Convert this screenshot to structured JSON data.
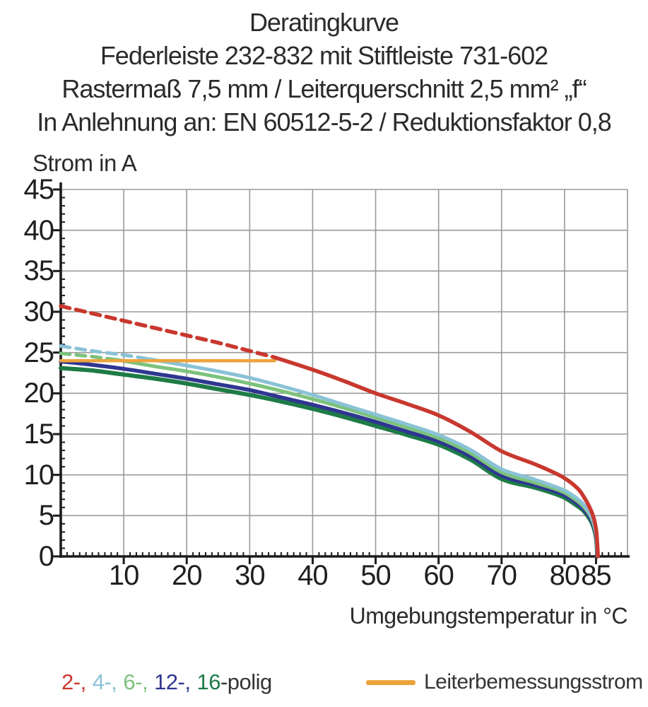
{
  "header": {
    "lines": [
      "Deratingkurve",
      "Federleiste 232-832 mit Stiftleiste 731-602",
      "Rastermaß 7,5 mm / Leiterquerschnitt 2,5 mm² „f“",
      "In Anlehnung an: EN 60512-5-2 / Reduktionsfaktor 0,8"
    ]
  },
  "chart_data": {
    "type": "line",
    "ylabel": "Strom in A",
    "xlabel": "Umgebungstemperatur in °C",
    "xlim": [
      0,
      90
    ],
    "ylim": [
      0,
      45
    ],
    "x_major_ticks": [
      10,
      20,
      30,
      40,
      50,
      60,
      70,
      80,
      85
    ],
    "x_grid_lines": [
      10,
      20,
      30,
      40,
      50,
      60,
      70,
      80,
      90
    ],
    "y_major_ticks": [
      0,
      5,
      10,
      15,
      20,
      25,
      30,
      35,
      40,
      45
    ],
    "y_grid_lines": [
      5,
      10,
      15,
      20,
      25,
      30,
      35,
      40,
      45
    ],
    "x_minor_step": 1,
    "y_minor_step": 1,
    "grid_on": true,
    "grid_color": "#9a9a9a",
    "axis_color": "#1c1c1c",
    "tick_label_color": "#1f1f1f",
    "note": "Curves are dashed where current exceeds the rated conductor current of 24 A",
    "series": [
      {
        "name": "16-polig",
        "color": "#1e7b46",
        "width": 6,
        "dash_until": null,
        "points": [
          [
            0,
            23.1
          ],
          [
            5,
            22.8
          ],
          [
            10,
            22.3
          ],
          [
            15,
            21.8
          ],
          [
            20,
            21.2
          ],
          [
            25,
            20.5
          ],
          [
            30,
            19.8
          ],
          [
            35,
            19.0
          ],
          [
            40,
            18.1
          ],
          [
            45,
            17.1
          ],
          [
            50,
            16.0
          ],
          [
            55,
            14.9
          ],
          [
            60,
            13.7
          ],
          [
            65,
            11.9
          ],
          [
            70,
            9.5
          ],
          [
            75,
            8.5
          ],
          [
            78,
            7.8
          ],
          [
            80,
            7.2
          ],
          [
            82,
            6.2
          ],
          [
            83,
            5.6
          ],
          [
            84,
            4.6
          ],
          [
            84.6,
            3.6
          ],
          [
            85,
            2.3
          ],
          [
            85.15,
            0.9
          ],
          [
            85.2,
            0
          ]
        ]
      },
      {
        "name": "12-polig",
        "color": "#2f3691",
        "width": 5.5,
        "dash_until": null,
        "points": [
          [
            0,
            23.9
          ],
          [
            5,
            23.5
          ],
          [
            10,
            23.0
          ],
          [
            15,
            22.4
          ],
          [
            20,
            21.8
          ],
          [
            25,
            21.1
          ],
          [
            30,
            20.4
          ],
          [
            35,
            19.5
          ],
          [
            40,
            18.6
          ],
          [
            45,
            17.6
          ],
          [
            50,
            16.5
          ],
          [
            55,
            15.3
          ],
          [
            60,
            14.1
          ],
          [
            65,
            12.3
          ],
          [
            70,
            9.9
          ],
          [
            75,
            8.8
          ],
          [
            78,
            8.1
          ],
          [
            80,
            7.5
          ],
          [
            82,
            6.5
          ],
          [
            83,
            5.8
          ],
          [
            84,
            4.8
          ],
          [
            84.6,
            3.8
          ],
          [
            85,
            2.5
          ],
          [
            85.15,
            1.0
          ],
          [
            85.2,
            0
          ]
        ]
      },
      {
        "name": "6-polig",
        "color": "#7dc27c",
        "width": 5,
        "dash_until": 9,
        "points": [
          [
            0,
            24.9
          ],
          [
            5,
            24.5
          ],
          [
            9,
            24.1
          ],
          [
            15,
            23.3
          ],
          [
            20,
            22.7
          ],
          [
            25,
            22.0
          ],
          [
            30,
            21.2
          ],
          [
            35,
            20.3
          ],
          [
            40,
            19.3
          ],
          [
            45,
            18.2
          ],
          [
            50,
            17.0
          ],
          [
            55,
            15.8
          ],
          [
            60,
            14.5
          ],
          [
            65,
            12.7
          ],
          [
            70,
            10.3
          ],
          [
            75,
            9.1
          ],
          [
            78,
            8.4
          ],
          [
            80,
            7.8
          ],
          [
            82,
            6.8
          ],
          [
            83,
            6.1
          ],
          [
            84,
            5.1
          ],
          [
            84.6,
            4.0
          ],
          [
            85,
            2.7
          ],
          [
            85.15,
            1.2
          ],
          [
            85.25,
            0
          ]
        ]
      },
      {
        "name": "4-polig",
        "color": "#8ac2d6",
        "width": 5,
        "dash_until": 14,
        "points": [
          [
            0,
            25.8
          ],
          [
            5,
            25.2
          ],
          [
            10,
            24.7
          ],
          [
            14,
            24.2
          ],
          [
            20,
            23.4
          ],
          [
            25,
            22.7
          ],
          [
            30,
            21.9
          ],
          [
            35,
            20.9
          ],
          [
            40,
            19.8
          ],
          [
            45,
            18.6
          ],
          [
            50,
            17.4
          ],
          [
            55,
            16.2
          ],
          [
            60,
            14.9
          ],
          [
            65,
            13.1
          ],
          [
            70,
            10.7
          ],
          [
            75,
            9.5
          ],
          [
            78,
            8.7
          ],
          [
            80,
            8.1
          ],
          [
            82,
            7.1
          ],
          [
            83,
            6.4
          ],
          [
            84,
            5.3
          ],
          [
            84.6,
            4.2
          ],
          [
            85,
            2.9
          ],
          [
            85.15,
            1.4
          ],
          [
            85.25,
            0
          ]
        ]
      },
      {
        "name": "Leiterbemessungsstrom",
        "color": "#eda33c",
        "width": 4.5,
        "dash_until": null,
        "points": [
          [
            0,
            24
          ],
          [
            34,
            24
          ]
        ]
      },
      {
        "name": "2-polig",
        "color": "#c8382e",
        "width": 5.5,
        "dash_until": 34,
        "points": [
          [
            0,
            30.7
          ],
          [
            5,
            29.8
          ],
          [
            10,
            28.9
          ],
          [
            15,
            28.0
          ],
          [
            20,
            27.1
          ],
          [
            25,
            26.2
          ],
          [
            30,
            25.2
          ],
          [
            34,
            24.4
          ],
          [
            40,
            22.9
          ],
          [
            45,
            21.5
          ],
          [
            50,
            20.0
          ],
          [
            55,
            18.7
          ],
          [
            60,
            17.3
          ],
          [
            65,
            15.3
          ],
          [
            70,
            12.9
          ],
          [
            75,
            11.4
          ],
          [
            78,
            10.4
          ],
          [
            80,
            9.6
          ],
          [
            82,
            8.4
          ],
          [
            83,
            7.4
          ],
          [
            84,
            6.0
          ],
          [
            84.6,
            4.8
          ],
          [
            85,
            3.4
          ],
          [
            85.2,
            1.6
          ],
          [
            85.3,
            0
          ]
        ]
      }
    ]
  },
  "legend": {
    "pole_items": [
      {
        "label": "2-,",
        "color": "#c8382e"
      },
      {
        "label": "4-,",
        "color": "#8ac2d6"
      },
      {
        "label": "6-,",
        "color": "#7dc27c"
      },
      {
        "label": "12-,",
        "color": "#2f3691"
      },
      {
        "label": "16",
        "color": "#1e7b46"
      }
    ],
    "suffix": "-polig",
    "rated_label": "Leiterbemessungsstrom",
    "rated_color": "#eda33c"
  }
}
